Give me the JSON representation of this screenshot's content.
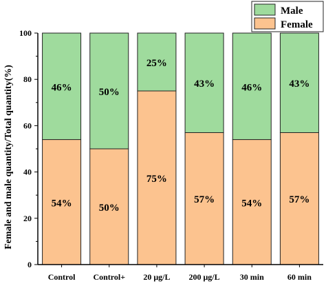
{
  "chart_data": {
    "type": "bar",
    "stacked": true,
    "percent": true,
    "categories": [
      "Control",
      "Control+",
      "20 μg/L",
      "200 μg/L",
      "30 min",
      "60 min"
    ],
    "series": [
      {
        "name": "Female",
        "color": "#fcc38f",
        "values": [
          54,
          50,
          75,
          57,
          54,
          57
        ],
        "labels": [
          "54%",
          "50%",
          "75%",
          "57%",
          "54%",
          "57%"
        ]
      },
      {
        "name": "Male",
        "color": "#9fdb9d",
        "values": [
          46,
          50,
          25,
          43,
          46,
          43
        ],
        "labels": [
          "46%",
          "50%",
          "25%",
          "43%",
          "46%",
          "43%"
        ]
      }
    ],
    "ylabel": "Female and male quantity/Total quantity(%)",
    "xlabel": "",
    "ylim": [
      0,
      100
    ],
    "yticks": [
      0,
      20,
      40,
      60,
      80,
      100
    ],
    "legend_position": "top-right",
    "grid": false
  }
}
